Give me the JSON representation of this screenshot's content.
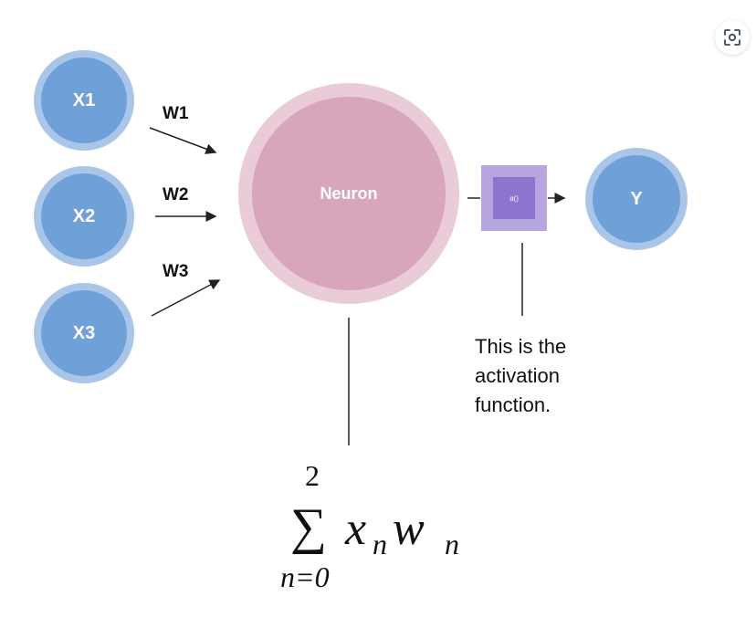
{
  "inputs": [
    {
      "label": "X1",
      "weight": "W1"
    },
    {
      "label": "X2",
      "weight": "W2"
    },
    {
      "label": "X3",
      "weight": "W3"
    }
  ],
  "neuron": {
    "label": "Neuron"
  },
  "activation": {
    "label": "a()",
    "note": "This is the activation function."
  },
  "output": {
    "label": "Y"
  },
  "formula": {
    "upper_limit": "2",
    "sum_symbol": "∑",
    "lower_limit": "n=0",
    "x_var": "x",
    "x_sub": "n",
    "w_var": "w",
    "w_sub": "n"
  },
  "colors": {
    "input_outer": "#a9c6e8",
    "input_inner": "#6fa0d8",
    "neuron_outer": "#e9ccd7",
    "neuron_inner": "#d7a6bd",
    "activation_outer": "#b7a6de",
    "activation_inner": "#8c74cf"
  },
  "icons": {
    "focus": "image-focus-icon"
  }
}
